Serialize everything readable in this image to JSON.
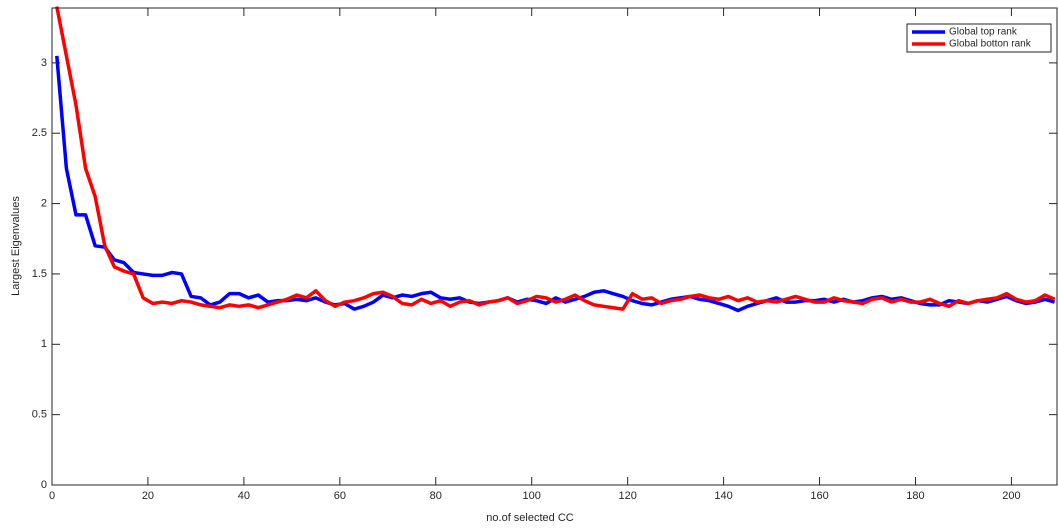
{
  "chart_data": {
    "type": "line",
    "xlabel": "no.of selected CC",
    "ylabel": "Largest Eigenvalues",
    "xlim": [
      0,
      209.5
    ],
    "ylim": [
      0,
      3.39
    ],
    "xticks": [
      0,
      20,
      40,
      60,
      80,
      100,
      120,
      140,
      160,
      180,
      200
    ],
    "yticks": [
      0,
      0.5,
      1,
      1.5,
      2,
      2.5,
      3
    ],
    "legend": "upper-right",
    "x": [
      1,
      3,
      5,
      7,
      9,
      11,
      13,
      15,
      17,
      19,
      21,
      23,
      25,
      27,
      29,
      31,
      33,
      35,
      37,
      39,
      41,
      43,
      45,
      47,
      49,
      51,
      53,
      55,
      57,
      59,
      61,
      63,
      65,
      67,
      69,
      71,
      73,
      75,
      77,
      79,
      81,
      83,
      85,
      87,
      89,
      91,
      93,
      95,
      97,
      99,
      101,
      103,
      105,
      107,
      109,
      111,
      113,
      115,
      117,
      119,
      121,
      123,
      125,
      127,
      129,
      131,
      133,
      135,
      137,
      139,
      141,
      143,
      145,
      147,
      149,
      151,
      153,
      155,
      157,
      159,
      161,
      163,
      165,
      167,
      169,
      171,
      173,
      175,
      177,
      179,
      181,
      183,
      185,
      187,
      189,
      191,
      193,
      195,
      197,
      199,
      201,
      203,
      205,
      207,
      209
    ],
    "series": [
      {
        "name": "Global top rank",
        "color": "#0000ff",
        "values": [
          3.05,
          2.25,
          1.92,
          1.92,
          1.7,
          1.69,
          1.6,
          1.58,
          1.51,
          1.5,
          1.49,
          1.49,
          1.51,
          1.5,
          1.34,
          1.33,
          1.28,
          1.3,
          1.36,
          1.36,
          1.33,
          1.35,
          1.3,
          1.31,
          1.31,
          1.32,
          1.31,
          1.33,
          1.3,
          1.28,
          1.29,
          1.25,
          1.27,
          1.3,
          1.35,
          1.33,
          1.35,
          1.34,
          1.36,
          1.37,
          1.33,
          1.32,
          1.33,
          1.3,
          1.29,
          1.3,
          1.31,
          1.33,
          1.3,
          1.32,
          1.31,
          1.29,
          1.33,
          1.3,
          1.32,
          1.34,
          1.37,
          1.38,
          1.36,
          1.34,
          1.31,
          1.29,
          1.28,
          1.3,
          1.32,
          1.33,
          1.34,
          1.32,
          1.31,
          1.29,
          1.27,
          1.24,
          1.27,
          1.29,
          1.31,
          1.33,
          1.3,
          1.3,
          1.31,
          1.31,
          1.32,
          1.3,
          1.32,
          1.3,
          1.31,
          1.33,
          1.34,
          1.32,
          1.33,
          1.31,
          1.29,
          1.28,
          1.28,
          1.31,
          1.3,
          1.29,
          1.31,
          1.3,
          1.32,
          1.34,
          1.31,
          1.29,
          1.3,
          1.32,
          1.3
        ]
      },
      {
        "name": "Global botton rank",
        "color": "#ff0000",
        "values": [
          3.4,
          3.05,
          2.7,
          2.25,
          2.05,
          1.7,
          1.55,
          1.52,
          1.5,
          1.33,
          1.29,
          1.3,
          1.29,
          1.31,
          1.3,
          1.28,
          1.27,
          1.26,
          1.28,
          1.27,
          1.28,
          1.26,
          1.28,
          1.3,
          1.32,
          1.35,
          1.33,
          1.38,
          1.31,
          1.27,
          1.3,
          1.31,
          1.33,
          1.36,
          1.37,
          1.34,
          1.29,
          1.28,
          1.32,
          1.29,
          1.31,
          1.27,
          1.3,
          1.31,
          1.28,
          1.3,
          1.31,
          1.33,
          1.29,
          1.31,
          1.34,
          1.33,
          1.3,
          1.32,
          1.35,
          1.31,
          1.28,
          1.27,
          1.26,
          1.25,
          1.36,
          1.32,
          1.33,
          1.29,
          1.31,
          1.32,
          1.34,
          1.35,
          1.33,
          1.32,
          1.34,
          1.31,
          1.33,
          1.3,
          1.31,
          1.3,
          1.32,
          1.34,
          1.32,
          1.3,
          1.3,
          1.33,
          1.31,
          1.3,
          1.29,
          1.32,
          1.33,
          1.3,
          1.32,
          1.3,
          1.3,
          1.32,
          1.29,
          1.27,
          1.31,
          1.29,
          1.31,
          1.32,
          1.33,
          1.36,
          1.32,
          1.3,
          1.31,
          1.35,
          1.32
        ]
      }
    ]
  }
}
